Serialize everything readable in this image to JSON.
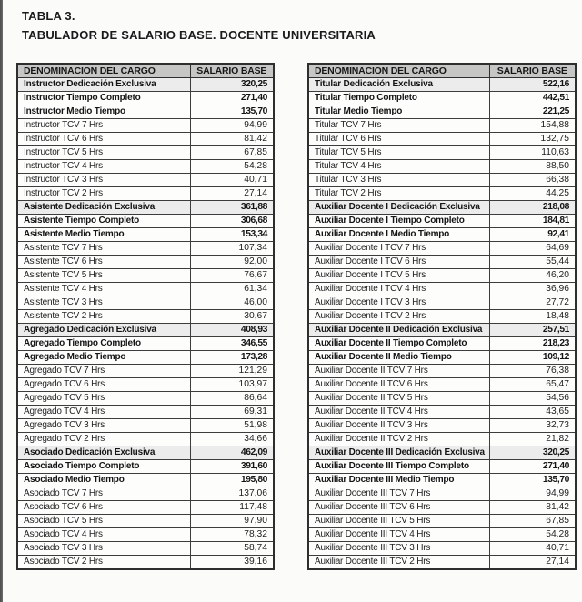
{
  "page": {
    "title_line1": "TABLA 3.",
    "title_line2": "TABULADOR DE SALARIO BASE. DOCENTE UNIVERSITARIA"
  },
  "columns": {
    "cargo": "DENOMINACION DEL CARGO",
    "salario": "SALARIO BASE"
  },
  "colors": {
    "header_bg": "#c6c7c4",
    "shaded_row_bg": "#ebeceb",
    "border": "#2e2e2e",
    "edge_bar": "#565656"
  },
  "chart_data": null,
  "tables": [
    {
      "rows": [
        {
          "label": "Instructor Dedicación Exclusiva",
          "value": "320,25",
          "style": "de"
        },
        {
          "label": "Instructor Tiempo Completo",
          "value": "271,40",
          "style": "b"
        },
        {
          "label": "Instructor Medio Tiempo",
          "value": "135,70",
          "style": "b"
        },
        {
          "label": "Instructor TCV 7 Hrs",
          "value": "94,99",
          "style": "n"
        },
        {
          "label": "Instructor TCV 6 Hrs",
          "value": "81,42",
          "style": "n"
        },
        {
          "label": "Instructor TCV 5 Hrs",
          "value": "67,85",
          "style": "n"
        },
        {
          "label": "Instructor TCV 4 Hrs",
          "value": "54,28",
          "style": "n"
        },
        {
          "label": "Instructor TCV 3 Hrs",
          "value": "40,71",
          "style": "n"
        },
        {
          "label": "Instructor TCV 2 Hrs",
          "value": "27,14",
          "style": "n"
        },
        {
          "label": "Asistente Dedicación Exclusiva",
          "value": "361,88",
          "style": "de"
        },
        {
          "label": "Asistente Tiempo Completo",
          "value": "306,68",
          "style": "b"
        },
        {
          "label": "Asistente Medio Tiempo",
          "value": "153,34",
          "style": "b"
        },
        {
          "label": "Asistente TCV 7 Hrs",
          "value": "107,34",
          "style": "n"
        },
        {
          "label": "Asistente TCV 6 Hrs",
          "value": "92,00",
          "style": "n"
        },
        {
          "label": "Asistente TCV 5 Hrs",
          "value": "76,67",
          "style": "n"
        },
        {
          "label": "Asistente TCV 4 Hrs",
          "value": "61,34",
          "style": "n"
        },
        {
          "label": "Asistente TCV 3 Hrs",
          "value": "46,00",
          "style": "n"
        },
        {
          "label": "Asistente TCV 2 Hrs",
          "value": "30,67",
          "style": "n"
        },
        {
          "label": "Agregado Dedicación Exclusiva",
          "value": "408,93",
          "style": "de"
        },
        {
          "label": "Agregado Tiempo Completo",
          "value": "346,55",
          "style": "b"
        },
        {
          "label": "Agregado Medio Tiempo",
          "value": "173,28",
          "style": "b"
        },
        {
          "label": "Agregado TCV 7 Hrs",
          "value": "121,29",
          "style": "n"
        },
        {
          "label": "Agregado TCV 6 Hrs",
          "value": "103,97",
          "style": "n"
        },
        {
          "label": "Agregado TCV 5 Hrs",
          "value": "86,64",
          "style": "n"
        },
        {
          "label": "Agregado TCV 4 Hrs",
          "value": "69,31",
          "style": "n"
        },
        {
          "label": "Agregado TCV 3 Hrs",
          "value": "51,98",
          "style": "n"
        },
        {
          "label": "Agregado TCV 2 Hrs",
          "value": "34,66",
          "style": "n"
        },
        {
          "label": "Asociado Dedicación Exclusiva",
          "value": "462,09",
          "style": "de"
        },
        {
          "label": "Asociado Tiempo Completo",
          "value": "391,60",
          "style": "b"
        },
        {
          "label": "Asociado Medio Tiempo",
          "value": "195,80",
          "style": "b"
        },
        {
          "label": "Asociado TCV 7 Hrs",
          "value": "137,06",
          "style": "n"
        },
        {
          "label": "Asociado TCV 6 Hrs",
          "value": "117,48",
          "style": "n"
        },
        {
          "label": "Asociado TCV 5 Hrs",
          "value": "97,90",
          "style": "n"
        },
        {
          "label": "Asociado TCV 4 Hrs",
          "value": "78,32",
          "style": "n"
        },
        {
          "label": "Asociado TCV 3 Hrs",
          "value": "58,74",
          "style": "n"
        },
        {
          "label": "Asociado TCV 2 Hrs",
          "value": "39,16",
          "style": "n"
        }
      ]
    },
    {
      "rows": [
        {
          "label": "Titular Dedicación Exclusiva",
          "value": "522,16",
          "style": "de"
        },
        {
          "label": "Titular Tiempo Completo",
          "value": "442,51",
          "style": "b"
        },
        {
          "label": "Titular Medio Tiempo",
          "value": "221,25",
          "style": "b"
        },
        {
          "label": "Titular TCV 7 Hrs",
          "value": "154,88",
          "style": "n"
        },
        {
          "label": "Titular TCV 6 Hrs",
          "value": "132,75",
          "style": "n"
        },
        {
          "label": "Titular TCV 5 Hrs",
          "value": "110,63",
          "style": "n"
        },
        {
          "label": "Titular TCV 4 Hrs",
          "value": "88,50",
          "style": "n"
        },
        {
          "label": "Titular TCV 3 Hrs",
          "value": "66,38",
          "style": "n"
        },
        {
          "label": "Titular TCV 2 Hrs",
          "value": "44,25",
          "style": "n"
        },
        {
          "label": "Auxiliar Docente I Dedicación Exclusiva",
          "value": "218,08",
          "style": "de"
        },
        {
          "label": "Auxiliar Docente I Tiempo Completo",
          "value": "184,81",
          "style": "b"
        },
        {
          "label": "Auxiliar Docente I Medio Tiempo",
          "value": "92,41",
          "style": "b"
        },
        {
          "label": "Auxiliar Docente I TCV 7 Hrs",
          "value": "64,69",
          "style": "n"
        },
        {
          "label": "Auxiliar Docente I TCV 6 Hrs",
          "value": "55,44",
          "style": "n"
        },
        {
          "label": "Auxiliar Docente I TCV 5 Hrs",
          "value": "46,20",
          "style": "n"
        },
        {
          "label": "Auxiliar Docente I TCV 4 Hrs",
          "value": "36,96",
          "style": "n"
        },
        {
          "label": "Auxiliar Docente I TCV 3 Hrs",
          "value": "27,72",
          "style": "n"
        },
        {
          "label": "Auxiliar Docente I TCV 2 Hrs",
          "value": "18,48",
          "style": "n"
        },
        {
          "label": "Auxiliar Docente II Dedicación Exclusiva",
          "value": "257,51",
          "style": "de"
        },
        {
          "label": "Auxiliar Docente II Tiempo Completo",
          "value": "218,23",
          "style": "b"
        },
        {
          "label": "Auxiliar Docente II Medio Tiempo",
          "value": "109,12",
          "style": "b"
        },
        {
          "label": "Auxiliar Docente II TCV 7 Hrs",
          "value": "76,38",
          "style": "n"
        },
        {
          "label": "Auxiliar Docente II TCV 6 Hrs",
          "value": "65,47",
          "style": "n"
        },
        {
          "label": "Auxiliar Docente II TCV 5 Hrs",
          "value": "54,56",
          "style": "n"
        },
        {
          "label": "Auxiliar Docente II TCV 4 Hrs",
          "value": "43,65",
          "style": "n"
        },
        {
          "label": "Auxiliar Docente II TCV 3 Hrs",
          "value": "32,73",
          "style": "n"
        },
        {
          "label": "Auxiliar Docente II TCV 2 Hrs",
          "value": "21,82",
          "style": "n"
        },
        {
          "label": "Auxiliar Docente III Dedicación Exclusiva",
          "value": "320,25",
          "style": "de"
        },
        {
          "label": "Auxiliar Docente III Tiempo Completo",
          "value": "271,40",
          "style": "b"
        },
        {
          "label": "Auxiliar Docente III Medio Tiempo",
          "value": "135,70",
          "style": "b"
        },
        {
          "label": "Auxiliar Docente III TCV 7 Hrs",
          "value": "94,99",
          "style": "n"
        },
        {
          "label": "Auxiliar Docente III TCV 6 Hrs",
          "value": "81,42",
          "style": "n"
        },
        {
          "label": "Auxiliar Docente III TCV 5 Hrs",
          "value": "67,85",
          "style": "n"
        },
        {
          "label": "Auxiliar Docente III TCV 4 Hrs",
          "value": "54,28",
          "style": "n"
        },
        {
          "label": "Auxiliar Docente III TCV 3 Hrs",
          "value": "40,71",
          "style": "n"
        },
        {
          "label": "Auxiliar Docente III TCV 2 Hrs",
          "value": "27,14",
          "style": "n"
        }
      ]
    }
  ]
}
